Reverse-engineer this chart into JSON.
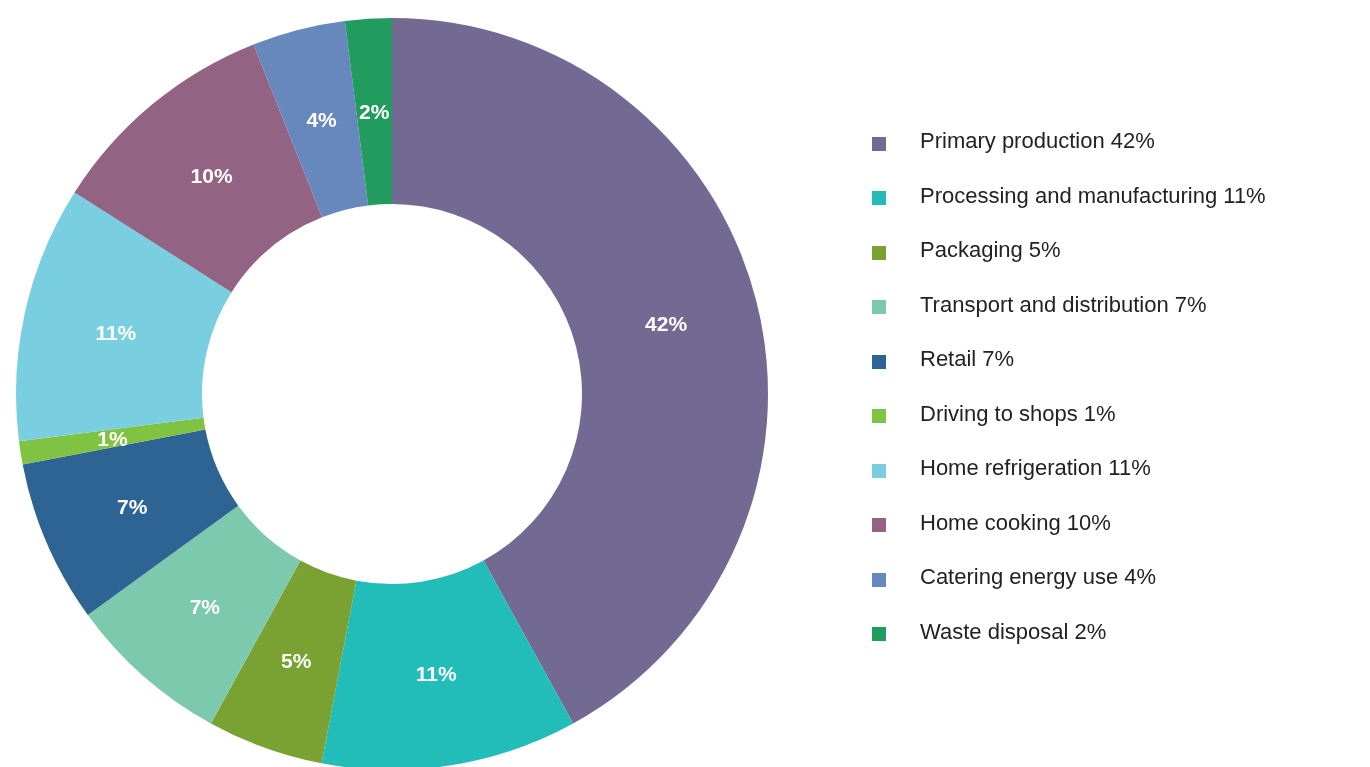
{
  "chart_data": {
    "type": "donut",
    "categories": [
      "Primary production 42%",
      "Processing and manufacturing 11%",
      "Packaging 5%",
      "Transport and distribution 7%",
      "Retail 7%",
      "Driving to shops 1%",
      "Home refrigeration 11%",
      "Home cooking 10%",
      "Catering energy use 4%",
      "Waste disposal 2%"
    ],
    "values": [
      42,
      11,
      5,
      7,
      7,
      1,
      11,
      10,
      4,
      2
    ],
    "value_labels": [
      "42%",
      "11%",
      "5%",
      "7%",
      "7%",
      "1%",
      "11%",
      "10%",
      "4%",
      "2%"
    ],
    "colors": [
      "#736a93",
      "#22bcb9",
      "#7aa232",
      "#7cc9ad",
      "#2e6494",
      "#80c342",
      "#79cfe0",
      "#936383",
      "#6688bd",
      "#229b5e"
    ],
    "legend": "right"
  }
}
